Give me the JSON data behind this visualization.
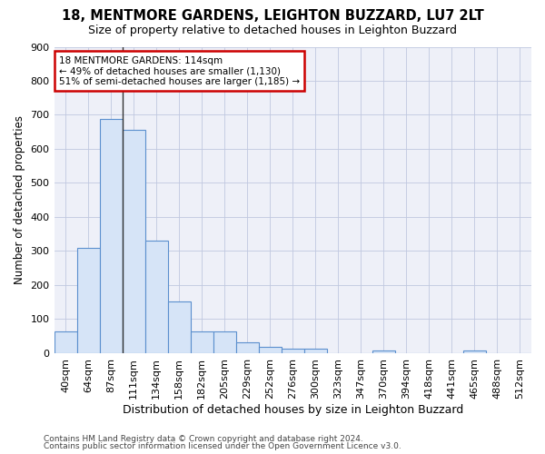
{
  "title1": "18, MENTMORE GARDENS, LEIGHTON BUZZARD, LU7 2LT",
  "title2": "Size of property relative to detached houses in Leighton Buzzard",
  "xlabel": "Distribution of detached houses by size in Leighton Buzzard",
  "ylabel": "Number of detached properties",
  "footer1": "Contains HM Land Registry data © Crown copyright and database right 2024.",
  "footer2": "Contains public sector information licensed under the Open Government Licence v3.0.",
  "bar_labels": [
    "40sqm",
    "64sqm",
    "87sqm",
    "111sqm",
    "134sqm",
    "158sqm",
    "182sqm",
    "205sqm",
    "229sqm",
    "252sqm",
    "276sqm",
    "300sqm",
    "323sqm",
    "347sqm",
    "370sqm",
    "394sqm",
    "418sqm",
    "441sqm",
    "465sqm",
    "488sqm",
    "512sqm"
  ],
  "bar_values": [
    63,
    310,
    688,
    655,
    330,
    152,
    65,
    65,
    32,
    18,
    12,
    12,
    0,
    0,
    8,
    0,
    0,
    0,
    8,
    0,
    0
  ],
  "bar_color": "#d6e4f7",
  "bar_edge_color": "#5b8fce",
  "highlight_bar_index": 3,
  "highlight_line_color": "#333333",
  "annotation_text": "18 MENTMORE GARDENS: 114sqm\n← 49% of detached houses are smaller (1,130)\n51% of semi-detached houses are larger (1,185) →",
  "annotation_box_facecolor": "#ffffff",
  "annotation_box_edgecolor": "#cc0000",
  "ylim": [
    0,
    900
  ],
  "yticks": [
    0,
    100,
    200,
    300,
    400,
    500,
    600,
    700,
    800,
    900
  ],
  "grid_color": "#c0c8e0",
  "bg_color": "#eef0f8",
  "plot_bg": "#ffffff",
  "title1_fontsize": 10.5,
  "title2_fontsize": 9,
  "ylabel_fontsize": 8.5,
  "xlabel_fontsize": 9,
  "tick_fontsize": 8,
  "footer_fontsize": 6.5
}
